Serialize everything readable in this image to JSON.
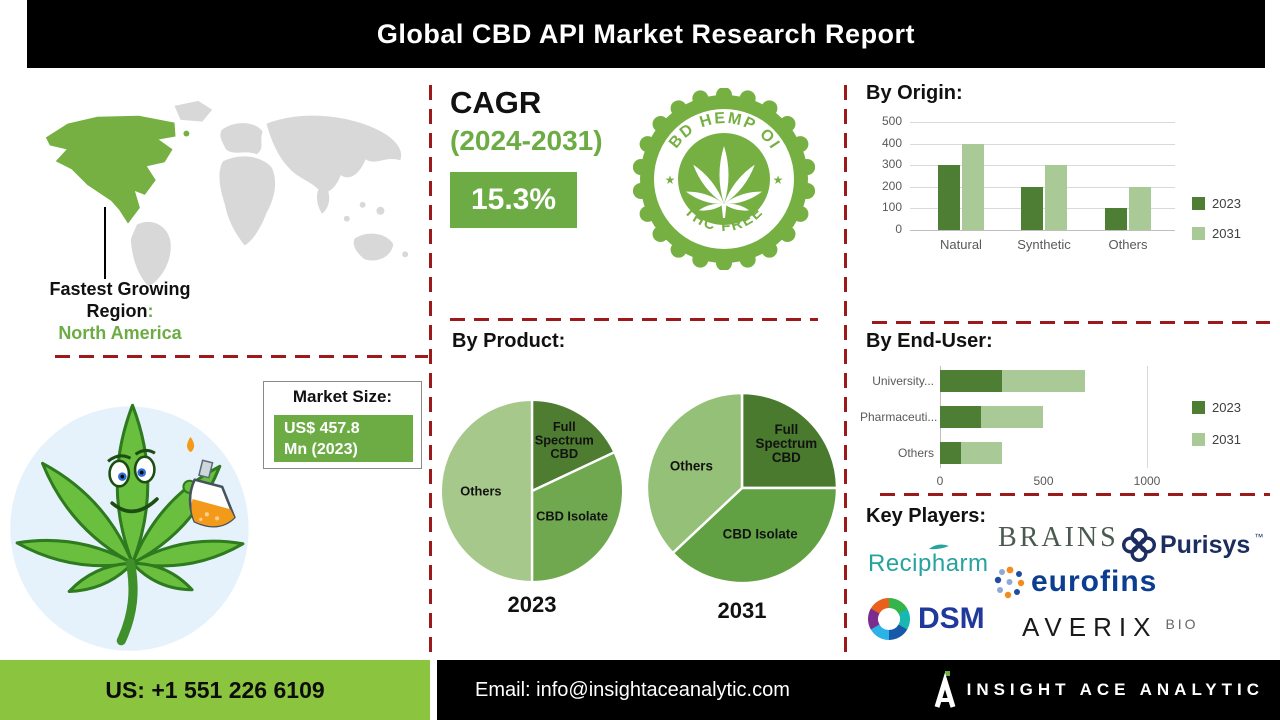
{
  "header": {
    "title": "Global CBD API Market Research Report"
  },
  "map": {
    "caption_line1": "Fastest Growing",
    "caption_line2": "Region",
    "colon": ":",
    "region": "North America"
  },
  "cagr": {
    "label": "CAGR",
    "period": "(2024-2031)",
    "value": "15.3%"
  },
  "badge": {
    "top_text": "CBD HEMP OIL",
    "bottom_text": "THC FREE",
    "star": "★"
  },
  "market_size": {
    "label": "Market Size:",
    "value_line1": "US$ 457.8",
    "value_line2": "Mn (2023)"
  },
  "sections": {
    "by_origin": "By Origin:",
    "by_product": "By Product:",
    "by_end_user": "By End-User:",
    "key_players": "Key Players:"
  },
  "chart_data": [
    {
      "type": "bar",
      "title": "By Origin:",
      "categories": [
        "Natural",
        "Synthetic",
        "Others"
      ],
      "series": [
        {
          "name": "2023",
          "color": "#4e7e33",
          "values": [
            300,
            200,
            100
          ]
        },
        {
          "name": "2031",
          "color": "#a9ca97",
          "values": [
            400,
            300,
            200
          ]
        }
      ],
      "ylim": [
        0,
        500
      ],
      "yticks": [
        0,
        100,
        200,
        300,
        400,
        500
      ],
      "grid": "on",
      "legend_position": "right"
    },
    {
      "type": "pie",
      "year": "2023",
      "slices": [
        {
          "label": "Full Spectrum CBD",
          "lines": [
            "Full",
            "Spectrum",
            "CBD"
          ],
          "value": 18,
          "color": "#4e7d31",
          "label_r": 0.66
        },
        {
          "label": "CBD Isolate",
          "lines": [
            "CBD Isolate"
          ],
          "value": 32,
          "color": "#70a850",
          "label_r": 0.52
        },
        {
          "label": "Others",
          "lines": [
            "Others"
          ],
          "value": 50,
          "color": "#a6c88a",
          "label_r": 0.56
        }
      ]
    },
    {
      "type": "pie",
      "year": "2031",
      "slices": [
        {
          "label": "Full Spectrum CBD",
          "lines": [
            "Full",
            "Spectrum",
            "CBD"
          ],
          "value": 25,
          "color": "#4a7a2e",
          "label_r": 0.66
        },
        {
          "label": "CBD Isolate",
          "lines": [
            "CBD Isolate"
          ],
          "value": 38,
          "color": "#61a144",
          "label_r": 0.52
        },
        {
          "label": "Others",
          "lines": [
            "Others"
          ],
          "value": 37,
          "color": "#95c078",
          "label_r": 0.58
        }
      ]
    },
    {
      "type": "stacked-bar-horizontal",
      "title": "By End-User:",
      "categories": [
        "University...",
        "Pharmaceuti...",
        "Others"
      ],
      "series": [
        {
          "name": "2023",
          "color": "#4e7e33",
          "values": [
            300,
            200,
            100
          ]
        },
        {
          "name": "2031",
          "color": "#a9ca97",
          "values": [
            400,
            300,
            200
          ]
        }
      ],
      "xticks": [
        0,
        500,
        1000
      ],
      "xlim": [
        0,
        1200
      ],
      "legend_position": "right"
    }
  ],
  "key_players": {
    "label": "Key Players:",
    "companies": [
      {
        "name": "Recipharm"
      },
      {
        "name": "BRAINS"
      },
      {
        "name": "Purisys",
        "tm": "™"
      },
      {
        "name": "eurofins"
      },
      {
        "name": "DSM"
      },
      {
        "name": "AVERIX",
        "suffix": "BIO"
      }
    ]
  },
  "footer": {
    "phone": "US: +1 551 226 6109",
    "email_label": "Email:",
    "email": "info@insightaceanalytic.com",
    "brand": "INSIGHT ACE ANALYTIC"
  },
  "colors": {
    "accent_green": "#6dac45",
    "footer_green": "#8bc53f",
    "badge_green": "#76b043",
    "divider_red": "#9e1a1a",
    "series_2023": "#4e7e33",
    "series_2031": "#a9ca97"
  }
}
